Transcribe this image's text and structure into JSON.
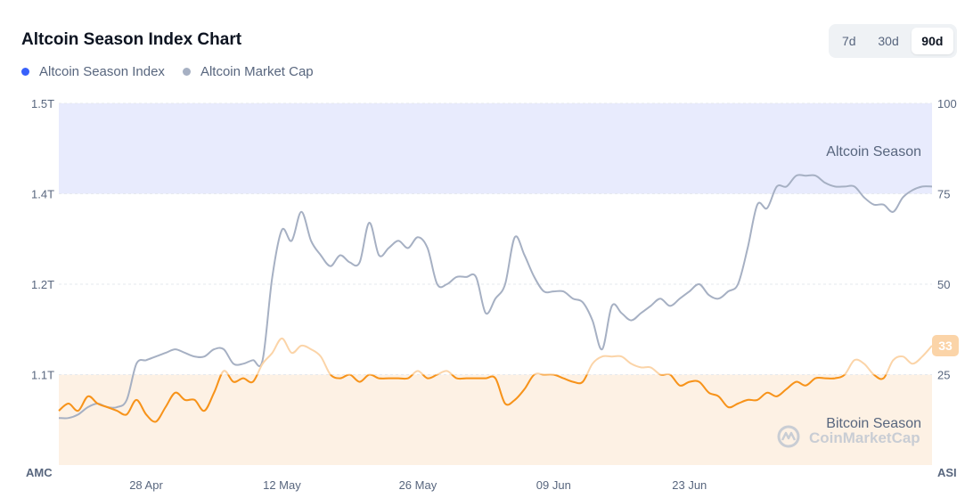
{
  "title": "Altcoin Season Index Chart",
  "legend": [
    {
      "label": "Altcoin Season Index",
      "color": "#3861fb"
    },
    {
      "label": "Altcoin Market Cap",
      "color": "#a6b0c3"
    }
  ],
  "range_buttons": [
    {
      "label": "7d",
      "active": false
    },
    {
      "label": "30d",
      "active": false
    },
    {
      "label": "90d",
      "active": true
    }
  ],
  "watermark": "CoinMarketCap",
  "chart_data": {
    "type": "line",
    "left_axis_title": "AMC",
    "right_axis_title": "ASI",
    "left_ticks": [
      "1.5T",
      "1.4T",
      "1.2T",
      "1.1T"
    ],
    "right_ticks": [
      "100",
      "75",
      "50",
      "25"
    ],
    "right_ylim": [
      0,
      100
    ],
    "x_ticks": [
      "28 Apr",
      "12 May",
      "26 May",
      "09 Jun",
      "23 Jun"
    ],
    "x_tick_positions": [
      9,
      23,
      37,
      51,
      65
    ],
    "n_points": 91,
    "zones": [
      {
        "label": "Altcoin Season",
        "from": 75,
        "to": 100,
        "color": "#e8ebfd"
      },
      {
        "label": "Bitcoin Season",
        "from": 0,
        "to": 25,
        "color": "#fdf1e4"
      }
    ],
    "current_index_label": "33",
    "series": [
      {
        "name": "Altcoin Season Index",
        "axis": "right",
        "points": [
          [
            0,
            15
          ],
          [
            1,
            17
          ],
          [
            2,
            15
          ],
          [
            3,
            19
          ],
          [
            4,
            17
          ],
          [
            5,
            16
          ],
          [
            6,
            15
          ],
          [
            7,
            14
          ],
          [
            8,
            18
          ],
          [
            9,
            14
          ],
          [
            10,
            12
          ],
          [
            11,
            16
          ],
          [
            12,
            20
          ],
          [
            13,
            18
          ],
          [
            14,
            18
          ],
          [
            15,
            15
          ],
          [
            16,
            20
          ],
          [
            17,
            26
          ],
          [
            18,
            23
          ],
          [
            19,
            24
          ],
          [
            20,
            23
          ],
          [
            21,
            28
          ],
          [
            22,
            31
          ],
          [
            23,
            35
          ],
          [
            24,
            31
          ],
          [
            25,
            33
          ],
          [
            26,
            32
          ],
          [
            27,
            30
          ],
          [
            28,
            25
          ],
          [
            29,
            24
          ],
          [
            30,
            25
          ],
          [
            31,
            23
          ],
          [
            32,
            25
          ],
          [
            33,
            24
          ],
          [
            34,
            24
          ],
          [
            35,
            24
          ],
          [
            36,
            24
          ],
          [
            37,
            26
          ],
          [
            38,
            24
          ],
          [
            39,
            25
          ],
          [
            40,
            26
          ],
          [
            41,
            24
          ],
          [
            42,
            24
          ],
          [
            43,
            24
          ],
          [
            44,
            24
          ],
          [
            45,
            24
          ],
          [
            46,
            17
          ],
          [
            47,
            18
          ],
          [
            48,
            21
          ],
          [
            49,
            25
          ],
          [
            50,
            25
          ],
          [
            51,
            25
          ],
          [
            52,
            24
          ],
          [
            53,
            23
          ],
          [
            54,
            23
          ],
          [
            55,
            28
          ],
          [
            56,
            30
          ],
          [
            57,
            30
          ],
          [
            58,
            30
          ],
          [
            59,
            28
          ],
          [
            60,
            27
          ],
          [
            61,
            27
          ],
          [
            62,
            25
          ],
          [
            63,
            25
          ],
          [
            64,
            22
          ],
          [
            65,
            23
          ],
          [
            66,
            23
          ],
          [
            67,
            20
          ],
          [
            68,
            19
          ],
          [
            69,
            16
          ],
          [
            70,
            17
          ],
          [
            71,
            18
          ],
          [
            72,
            18
          ],
          [
            73,
            20
          ],
          [
            74,
            19
          ],
          [
            75,
            21
          ],
          [
            76,
            23
          ],
          [
            77,
            22
          ],
          [
            78,
            24
          ],
          [
            79,
            24
          ],
          [
            80,
            24
          ],
          [
            81,
            25
          ],
          [
            82,
            29
          ],
          [
            83,
            28
          ],
          [
            84,
            25
          ],
          [
            85,
            24
          ],
          [
            86,
            29
          ],
          [
            87,
            30
          ],
          [
            88,
            28
          ],
          [
            89,
            30
          ],
          [
            90,
            33
          ]
        ]
      },
      {
        "name": "Altcoin Market Cap",
        "axis": "left",
        "points": [
          [
            0,
            13
          ],
          [
            1,
            13
          ],
          [
            2,
            14
          ],
          [
            3,
            16
          ],
          [
            4,
            17
          ],
          [
            5,
            16
          ],
          [
            6,
            16
          ],
          [
            7,
            18
          ],
          [
            8,
            28
          ],
          [
            9,
            29
          ],
          [
            10,
            30
          ],
          [
            11,
            31
          ],
          [
            12,
            32
          ],
          [
            13,
            31
          ],
          [
            14,
            30
          ],
          [
            15,
            30
          ],
          [
            16,
            32
          ],
          [
            17,
            32
          ],
          [
            18,
            28
          ],
          [
            19,
            28
          ],
          [
            20,
            29
          ],
          [
            21,
            29
          ],
          [
            22,
            52
          ],
          [
            23,
            65
          ],
          [
            24,
            62
          ],
          [
            25,
            70
          ],
          [
            26,
            62
          ],
          [
            27,
            58
          ],
          [
            28,
            55
          ],
          [
            29,
            58
          ],
          [
            30,
            56
          ],
          [
            31,
            56
          ],
          [
            32,
            67
          ],
          [
            33,
            58
          ],
          [
            34,
            60
          ],
          [
            35,
            62
          ],
          [
            36,
            60
          ],
          [
            37,
            63
          ],
          [
            38,
            60
          ],
          [
            39,
            50
          ],
          [
            40,
            50
          ],
          [
            41,
            52
          ],
          [
            42,
            52
          ],
          [
            43,
            52
          ],
          [
            44,
            42
          ],
          [
            45,
            46
          ],
          [
            46,
            50
          ],
          [
            47,
            63
          ],
          [
            48,
            58
          ],
          [
            49,
            52
          ],
          [
            50,
            48
          ],
          [
            51,
            48
          ],
          [
            52,
            48
          ],
          [
            53,
            46
          ],
          [
            54,
            45
          ],
          [
            55,
            40
          ],
          [
            56,
            32
          ],
          [
            57,
            44
          ],
          [
            58,
            42
          ],
          [
            59,
            40
          ],
          [
            60,
            42
          ],
          [
            61,
            44
          ],
          [
            62,
            46
          ],
          [
            63,
            44
          ],
          [
            64,
            46
          ],
          [
            65,
            48
          ],
          [
            66,
            50
          ],
          [
            67,
            47
          ],
          [
            68,
            46
          ],
          [
            69,
            48
          ],
          [
            70,
            50
          ],
          [
            71,
            60
          ],
          [
            72,
            72
          ],
          [
            73,
            71
          ],
          [
            74,
            77
          ],
          [
            75,
            77
          ],
          [
            76,
            80
          ],
          [
            77,
            80
          ],
          [
            78,
            80
          ],
          [
            79,
            78
          ],
          [
            80,
            77
          ],
          [
            81,
            77
          ],
          [
            82,
            77
          ],
          [
            83,
            74
          ],
          [
            84,
            72
          ],
          [
            85,
            72
          ],
          [
            86,
            70
          ],
          [
            87,
            74
          ],
          [
            88,
            76
          ],
          [
            89,
            77
          ],
          [
            90,
            77
          ]
        ]
      }
    ]
  }
}
